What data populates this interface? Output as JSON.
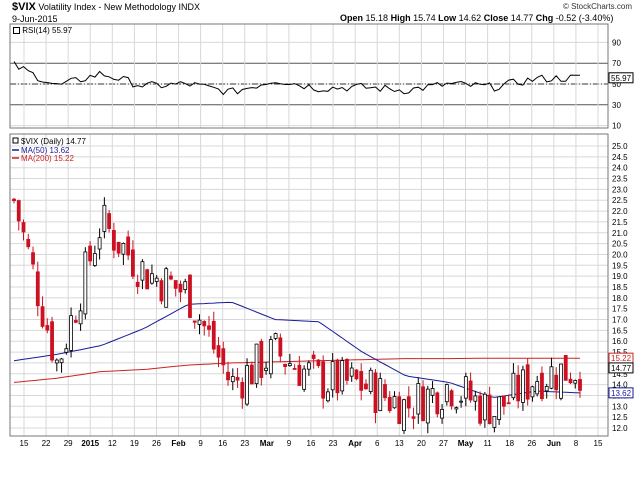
{
  "header": {
    "symbol": "$VIX",
    "name": "Volatility Index - New Methodology",
    "exchange": "INDX",
    "date": "9-Jun-2015",
    "open_label": "Open",
    "open": "15.18",
    "high_label": "High",
    "high": "15.74",
    "low_label": "Low",
    "low": "14.62",
    "close_label": "Close",
    "close": "14.77",
    "chg_label": "Chg",
    "chg": "-0.52 (-3.40%)",
    "copyright": "© StockCharts.com"
  },
  "rsi_panel": {
    "label": "RSI(14) 55.97",
    "current": "55.97",
    "ticks": [
      "90",
      "70",
      "50",
      "30",
      "10"
    ],
    "overbought": 70,
    "oversold": 30
  },
  "price_panel": {
    "label": "$VIX (Daily) 14.77",
    "ma50_label": "MA(50) 13.62",
    "ma200_label": "MA(200) 15.22",
    "ma50_value": "13.62",
    "ma200_value": "15.22",
    "close_value": "14.77",
    "ticks": [
      "25.0",
      "24.5",
      "24.0",
      "23.5",
      "23.0",
      "22.5",
      "22.0",
      "21.5",
      "21.0",
      "20.5",
      "20.0",
      "19.5",
      "19.0",
      "18.5",
      "18.0",
      "17.5",
      "17.0",
      "16.5",
      "16.0",
      "15.5",
      "15.0",
      "14.5",
      "14.0",
      "13.5",
      "13.0",
      "12.5",
      "12.0"
    ]
  },
  "x_axis": {
    "labels": [
      "15",
      "22",
      "29",
      "2015",
      "12",
      "19",
      "26",
      "Feb",
      "9",
      "16",
      "23",
      "Mar",
      "9",
      "16",
      "23",
      "Apr",
      "6",
      "13",
      "20",
      "27",
      "May",
      "11",
      "18",
      "26",
      "Jun",
      "8",
      "15"
    ],
    "bold": [
      "2015",
      "Feb",
      "Mar",
      "Apr",
      "May",
      "Jun"
    ]
  },
  "colors": {
    "up": "#000000",
    "down": "#cc1122",
    "ma50": "#1a1a99",
    "ma200": "#cc2222",
    "rsi": "#000000",
    "grid": "#d8d8d8"
  },
  "chart_data": [
    {
      "type": "line",
      "title": "RSI(14) 55.97",
      "ylim": [
        0,
        100
      ],
      "x": [
        "2014-12-15",
        "2014-12-29",
        "2015-01-12",
        "2015-01-26",
        "2015-02-09",
        "2015-02-23",
        "2015-03-09",
        "2015-03-23",
        "2015-04-06",
        "2015-04-20",
        "2015-05-04",
        "2015-05-18",
        "2015-06-01",
        "2015-06-09"
      ],
      "values": [
        68,
        48,
        60,
        48,
        50,
        42,
        54,
        46,
        47,
        44,
        50,
        47,
        55,
        56
      ]
    },
    {
      "type": "candlestick",
      "title": "$VIX (Daily) 14.77",
      "ylim": [
        12.0,
        25.0
      ],
      "series": [
        {
          "name": "MA(50) 13.62",
          "values": [
            15.1,
            15.4,
            15.8,
            16.6,
            17.7,
            17.8,
            17.0,
            16.9,
            15.5,
            14.4,
            14.1,
            13.4,
            13.7,
            13.62
          ]
        },
        {
          "name": "MA(200) 15.22",
          "values": [
            14.1,
            14.3,
            14.6,
            14.7,
            14.9,
            15.0,
            15.05,
            15.1,
            15.15,
            15.2,
            15.2,
            15.22,
            15.22,
            15.22
          ]
        }
      ],
      "x": [
        "2014-12-15",
        "2014-12-29",
        "2015-01-12",
        "2015-01-26",
        "2015-02-09",
        "2015-02-23",
        "2015-03-09",
        "2015-03-23",
        "2015-04-06",
        "2015-04-20",
        "2015-05-04",
        "2015-05-18",
        "2015-06-01",
        "2015-06-09"
      ],
      "close": [
        22.5,
        14.9,
        21.5,
        19.2,
        18.2,
        14.0,
        15.5,
        14.2,
        14.0,
        13.0,
        14.0,
        12.7,
        14.4,
        14.77
      ]
    }
  ]
}
